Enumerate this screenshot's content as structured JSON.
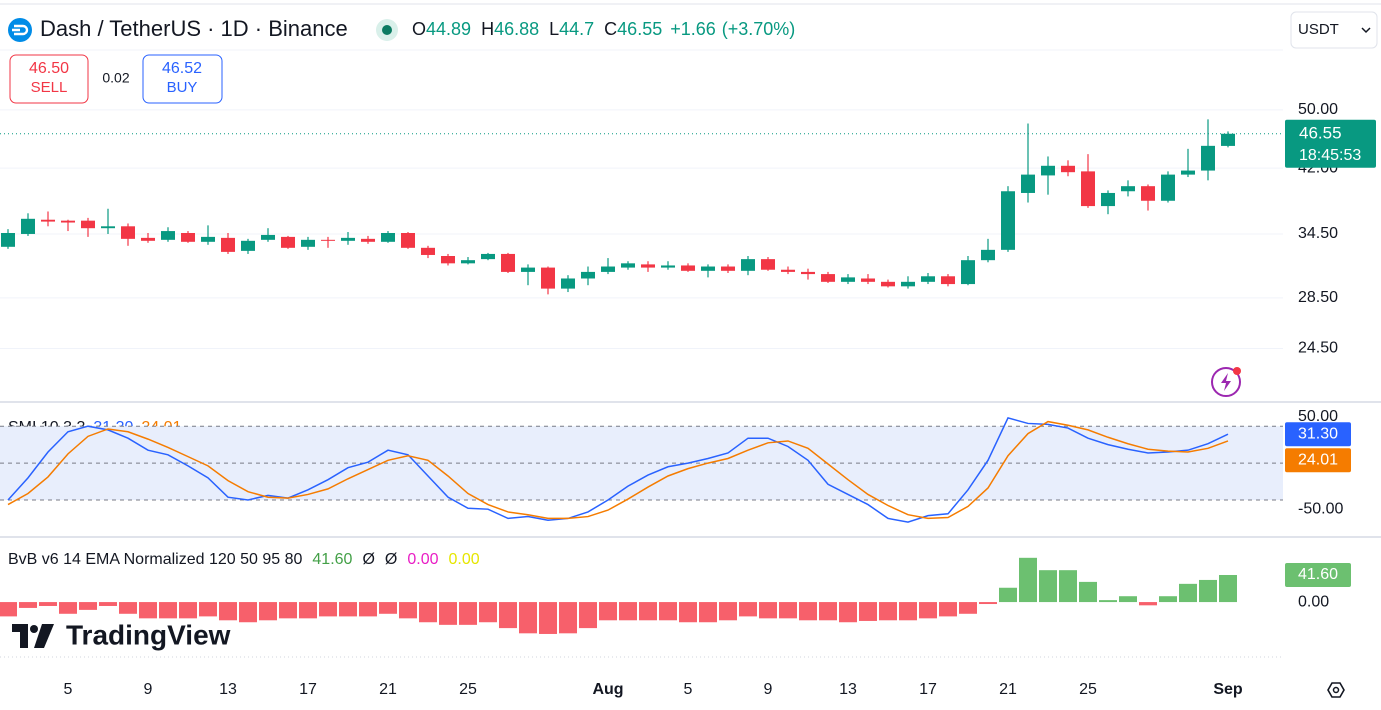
{
  "header": {
    "symbol": "Dash / TetherUS · 1D · Binance",
    "ohlc_labels": [
      "O",
      "H",
      "L",
      "C"
    ],
    "change": "+1.66",
    "change_pct": "(+3.70%)",
    "currency": "USDT",
    "sell": {
      "price": "46.50",
      "label": "SELL"
    },
    "spread": "0.02",
    "buy": {
      "price": "46.52",
      "label": "BUY"
    },
    "logo": "TradingView"
  },
  "chart_data": [
    {
      "type": "candlestick",
      "categories": [
        null,
        null,
        null,
        "5",
        null,
        null,
        null,
        "9",
        null,
        null,
        null,
        "13",
        null,
        null,
        null,
        "17",
        null,
        null,
        null,
        "21",
        null,
        null,
        null,
        "25",
        null,
        null,
        null,
        null,
        null,
        null,
        "Aug",
        null,
        null,
        null,
        "5",
        null,
        null,
        null,
        "9",
        null,
        null,
        null,
        "13",
        null,
        null,
        null,
        "17",
        null,
        null,
        null,
        "21",
        null,
        null,
        null,
        "25",
        null,
        null,
        null,
        null,
        null,
        null,
        "Sep"
      ],
      "open": [
        33.2,
        34.5,
        36.0,
        35.9,
        35.9,
        35.1,
        35.3,
        34.1,
        33.9,
        34.6,
        33.7,
        34.1,
        32.8,
        33.9,
        34.2,
        33.2,
        33.9,
        33.8,
        34.0,
        33.7,
        34.6,
        33.1,
        32.3,
        31.6,
        32.0,
        32.5,
        30.8,
        31.2,
        29.3,
        30.2,
        30.8,
        31.2,
        31.5,
        31.2,
        31.4,
        30.9,
        31.3,
        30.9,
        32.0,
        31.0,
        30.8,
        30.6,
        29.9,
        30.2,
        29.9,
        29.5,
        29.9,
        30.4,
        29.7,
        31.9,
        32.9,
        39.0,
        41.1,
        42.3,
        41.6,
        37.5,
        39.2,
        39.8,
        38.1,
        41.2,
        41.7,
        44.89
      ],
      "high": [
        35.0,
        36.7,
        36.9,
        36.0,
        36.2,
        37.2,
        35.6,
        34.6,
        35.2,
        34.8,
        35.4,
        34.6,
        34.0,
        35.1,
        34.3,
        34.2,
        34.2,
        34.7,
        34.3,
        34.8,
        34.7,
        33.3,
        32.5,
        32.2,
        32.6,
        32.6,
        31.5,
        31.3,
        30.5,
        31.3,
        32.1,
        31.8,
        31.8,
        31.8,
        31.6,
        31.5,
        31.5,
        32.3,
        32.2,
        31.3,
        31.1,
        30.8,
        30.6,
        30.6,
        30.1,
        30.4,
        30.7,
        30.6,
        32.3,
        34.0,
        39.8,
        48.0,
        43.5,
        43.0,
        43.8,
        39.3,
        40.5,
        40.0,
        41.6,
        44.5,
        48.6,
        46.88
      ],
      "low": [
        33.0,
        34.3,
        35.3,
        34.8,
        34.2,
        34.5,
        33.3,
        33.6,
        33.7,
        33.6,
        33.4,
        32.5,
        32.5,
        33.7,
        33.0,
        32.9,
        33.1,
        33.4,
        33.5,
        33.6,
        33.0,
        32.1,
        31.4,
        31.5,
        31.9,
        30.7,
        29.6,
        28.8,
        29.0,
        29.6,
        30.6,
        31.0,
        30.8,
        31.0,
        30.8,
        30.3,
        30.7,
        30.5,
        30.9,
        30.6,
        30.1,
        29.8,
        29.7,
        29.7,
        29.4,
        29.3,
        29.7,
        29.5,
        29.6,
        31.7,
        32.7,
        37.9,
        38.8,
        41.0,
        37.3,
        36.6,
        38.6,
        37.0,
        37.9,
        40.9,
        40.5,
        44.7
      ],
      "close": [
        34.6,
        36.1,
        35.8,
        35.7,
        35.1,
        35.3,
        34.0,
        33.8,
        34.8,
        33.7,
        34.2,
        32.7,
        33.8,
        34.4,
        33.1,
        33.9,
        33.8,
        34.1,
        33.7,
        34.6,
        33.1,
        32.4,
        31.6,
        31.9,
        32.5,
        30.8,
        31.2,
        29.3,
        30.2,
        30.8,
        31.3,
        31.6,
        31.2,
        31.4,
        30.9,
        31.3,
        30.9,
        32.0,
        31.0,
        30.8,
        30.6,
        29.9,
        30.3,
        29.9,
        29.5,
        29.9,
        30.4,
        29.7,
        31.9,
        32.9,
        39.2,
        41.2,
        42.3,
        41.5,
        37.5,
        39.0,
        39.8,
        38.1,
        41.2,
        41.7,
        44.9,
        46.55
      ],
      "up_color": "#089981",
      "down_color": "#f23645",
      "ylim": [
        21.0,
        59.8
      ],
      "log_scale": true,
      "yticks": [
        {
          "value": 50,
          "label": "50.00"
        },
        {
          "value": 42,
          "label": "42.00"
        },
        {
          "value": 34.5,
          "label": "34.50"
        },
        {
          "value": 28.5,
          "label": "28.50"
        },
        {
          "value": 24.5,
          "label": "24.50"
        }
      ],
      "grid": true,
      "last_price_time": "18:45:53"
    },
    {
      "type": "line",
      "title": "SMI 10 3 3",
      "series": [
        {
          "color": "#2962ff",
          "last_label": "31.30",
          "values": [
            -40,
            -16,
            12,
            34,
            40,
            36,
            27,
            14,
            9,
            -3,
            -16,
            -37,
            -40,
            -35,
            -38,
            -29,
            -18,
            -5,
            1,
            14,
            9,
            -14,
            -37,
            -49,
            -50,
            -60,
            -58,
            -62,
            -60,
            -53,
            -40,
            -25,
            -13,
            -4,
            0,
            5,
            11,
            27,
            27,
            18,
            3,
            -23,
            -34,
            -45,
            -60,
            -64,
            -57,
            -55,
            -29,
            3,
            49,
            43,
            42,
            38,
            27,
            20,
            15,
            11,
            12,
            14,
            21,
            31.3
          ]
        },
        {
          "color": "#f57c00",
          "last_label": "24.01",
          "values": [
            -45,
            -33,
            -15,
            10,
            29,
            37,
            34,
            26,
            17,
            7,
            -3,
            -19,
            -31,
            -37,
            -38,
            -34,
            -28,
            -17,
            -7,
            3,
            8,
            3,
            -14,
            -33,
            -45,
            -53,
            -56,
            -60,
            -60,
            -58,
            -51,
            -39,
            -26,
            -14,
            -6,
            0,
            5,
            14,
            22,
            24,
            16,
            -1,
            -18,
            -34,
            -46,
            -56,
            -60,
            -59,
            -47,
            -27,
            8,
            32,
            45,
            41,
            36,
            28,
            21,
            15,
            13,
            12,
            16,
            24.01
          ]
        }
      ],
      "ylim": [
        -78,
        63
      ],
      "yticks": [
        {
          "value": 50,
          "label": "50.00"
        },
        {
          "value": -50,
          "label": "-50.00"
        }
      ],
      "bands": [
        40,
        0,
        -40
      ],
      "band_fill": "#e8eefc"
    },
    {
      "type": "bar",
      "title": "BvB v6 14 EMA Normalized 120 50 95 80",
      "values": [
        -22,
        -9,
        -6,
        -18,
        -12,
        -6,
        -18,
        -25,
        -25,
        -25,
        -22,
        -28,
        -31,
        -28,
        -25,
        -25,
        -22,
        -22,
        -22,
        -18,
        -25,
        -31,
        -35,
        -35,
        -31,
        -40,
        -48,
        -49,
        -48,
        -40,
        -28,
        -28,
        -28,
        -28,
        -31,
        -31,
        -28,
        -22,
        -25,
        -25,
        -28,
        -28,
        -31,
        -29,
        -28,
        -28,
        -25,
        -22,
        -18,
        -3,
        22,
        68,
        49,
        49,
        31,
        3,
        9,
        -5,
        9,
        28,
        34,
        41.6
      ],
      "last_label": "41.60",
      "pos_color": "#6cc070",
      "neg_color": "#f7606b",
      "legend_items": [
        {
          "label": "Ø",
          "color": "#131722"
        },
        {
          "label": "Ø",
          "color": "#131722"
        },
        {
          "label": "0.00",
          "color": "#e91ec5"
        },
        {
          "label": "0.00",
          "color": "#e6e600"
        }
      ],
      "ylim": [
        -89,
        80
      ],
      "yticks": [
        {
          "value": 0,
          "label": "0.00"
        }
      ]
    }
  ]
}
